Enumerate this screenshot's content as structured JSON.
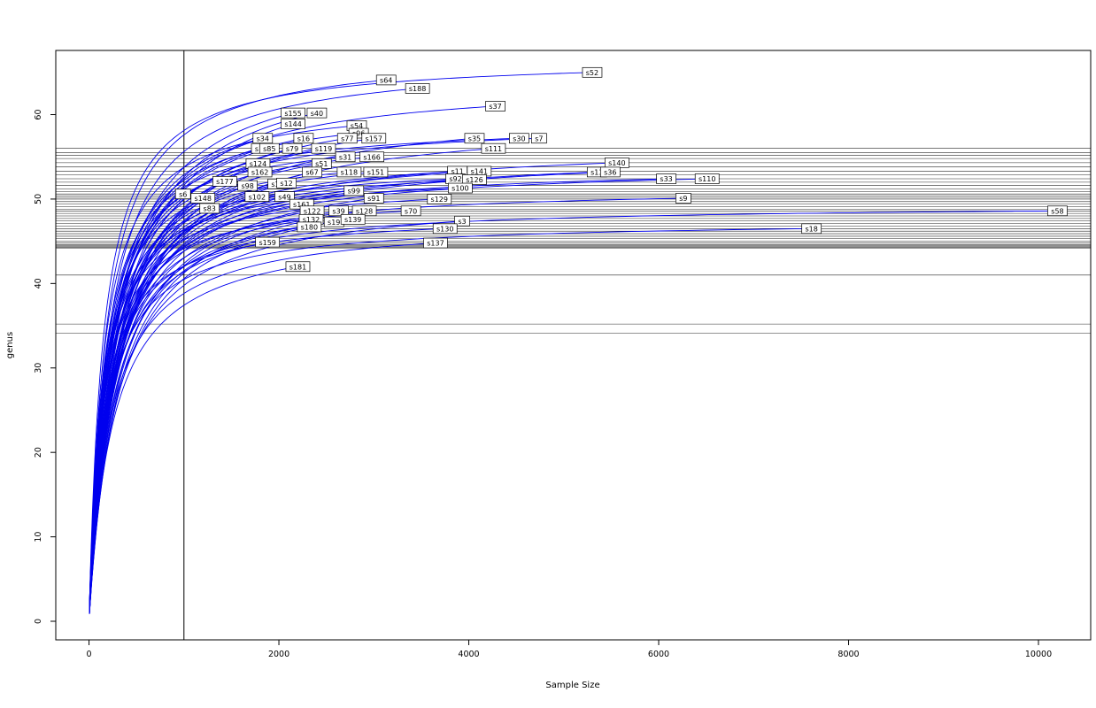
{
  "figure": {
    "background": "#ffffff"
  },
  "chart_data": {
    "type": "line",
    "title": "",
    "xlabel": "Sample Size",
    "ylabel": "genus",
    "curve_color": "#0000ee",
    "hline_color": "#000000",
    "box_color": "#000000",
    "xlim": [
      -350,
      10550
    ],
    "ylim": [
      -2.2,
      67.6
    ],
    "x_ticks": [
      0,
      2000,
      4000,
      6000,
      8000,
      10000
    ],
    "y_ticks": [
      0,
      10,
      20,
      30,
      40,
      50,
      60
    ],
    "vline_x": 1000,
    "hlines": [
      56.0,
      55.5,
      55.2,
      54.8,
      54.3,
      53.8,
      53.3,
      52.9,
      52.4,
      52.0,
      51.6,
      51.2,
      50.9,
      50.6,
      50.4,
      50.2,
      50.0,
      49.7,
      49.4,
      49.1,
      48.8,
      48.6,
      48.3,
      48.0,
      47.7,
      47.4,
      47.1,
      46.8,
      46.5,
      46.2,
      45.9,
      45.6,
      45.3,
      45.0,
      44.8,
      44.6,
      44.5,
      44.4,
      44.3,
      44.2,
      41.0,
      35.2,
      34.1
    ],
    "series": [
      {
        "label": "s52",
        "end_x": 5300,
        "end_y": 65.0
      },
      {
        "label": "s64",
        "end_x": 3130,
        "end_y": 64.1
      },
      {
        "label": "s188",
        "end_x": 3460,
        "end_y": 63.1
      },
      {
        "label": "s37",
        "end_x": 4280,
        "end_y": 61.0
      },
      {
        "label": "s155",
        "end_x": 2150,
        "end_y": 60.2
      },
      {
        "label": "s40",
        "end_x": 2400,
        "end_y": 60.2
      },
      {
        "label": "s144",
        "end_x": 2150,
        "end_y": 58.9
      },
      {
        "label": "s54",
        "end_x": 2820,
        "end_y": 58.7
      },
      {
        "label": "s96",
        "end_x": 2840,
        "end_y": 57.8
      },
      {
        "label": "s34",
        "end_x": 1830,
        "end_y": 57.2
      },
      {
        "label": "s16",
        "end_x": 2260,
        "end_y": 57.2
      },
      {
        "label": "s77",
        "end_x": 2720,
        "end_y": 57.2
      },
      {
        "label": "s157",
        "end_x": 3000,
        "end_y": 57.2
      },
      {
        "label": "s35",
        "end_x": 4060,
        "end_y": 57.2
      },
      {
        "label": "s30",
        "end_x": 4530,
        "end_y": 57.2
      },
      {
        "label": "s7",
        "end_x": 4740,
        "end_y": 57.2
      },
      {
        "label": "s1",
        "end_x": 1790,
        "end_y": 56.0
      },
      {
        "label": "s85",
        "end_x": 1900,
        "end_y": 56.0
      },
      {
        "label": "s79",
        "end_x": 2140,
        "end_y": 56.0
      },
      {
        "label": "s119",
        "end_x": 2470,
        "end_y": 56.0
      },
      {
        "label": "s111",
        "end_x": 4260,
        "end_y": 56.0
      },
      {
        "label": "s31",
        "end_x": 2700,
        "end_y": 55.0
      },
      {
        "label": "s166",
        "end_x": 2980,
        "end_y": 55.0
      },
      {
        "label": "s124",
        "end_x": 1780,
        "end_y": 54.2
      },
      {
        "label": "s51",
        "end_x": 2450,
        "end_y": 54.2
      },
      {
        "label": "s140",
        "end_x": 5560,
        "end_y": 54.3
      },
      {
        "label": "s162",
        "end_x": 1800,
        "end_y": 53.2
      },
      {
        "label": "s67",
        "end_x": 2350,
        "end_y": 53.2
      },
      {
        "label": "s118",
        "end_x": 2740,
        "end_y": 53.2
      },
      {
        "label": "s151",
        "end_x": 3020,
        "end_y": 53.2
      },
      {
        "label": "s11",
        "end_x": 3880,
        "end_y": 53.3
      },
      {
        "label": "s141",
        "end_x": 4110,
        "end_y": 53.3
      },
      {
        "label": "s13",
        "end_x": 5350,
        "end_y": 53.2
      },
      {
        "label": "s36",
        "end_x": 5490,
        "end_y": 53.2
      },
      {
        "label": "s177",
        "end_x": 1430,
        "end_y": 52.1
      },
      {
        "label": "s92",
        "end_x": 3860,
        "end_y": 52.4
      },
      {
        "label": "s126",
        "end_x": 4060,
        "end_y": 52.3
      },
      {
        "label": "s33",
        "end_x": 6080,
        "end_y": 52.4
      },
      {
        "label": "s110",
        "end_x": 6510,
        "end_y": 52.4
      },
      {
        "label": "s98",
        "end_x": 1670,
        "end_y": 51.6
      },
      {
        "label": "s156",
        "end_x": 2010,
        "end_y": 51.8
      },
      {
        "label": "s12",
        "end_x": 2080,
        "end_y": 51.9
      },
      {
        "label": "s100",
        "end_x": 3910,
        "end_y": 51.3
      },
      {
        "label": "s99",
        "end_x": 2790,
        "end_y": 51.0
      },
      {
        "label": "s6",
        "end_x": 990,
        "end_y": 50.6
      },
      {
        "label": "s148",
        "end_x": 1200,
        "end_y": 50.1
      },
      {
        "label": "s102",
        "end_x": 1770,
        "end_y": 50.3
      },
      {
        "label": "s49",
        "end_x": 2060,
        "end_y": 50.3
      },
      {
        "label": "s91",
        "end_x": 3000,
        "end_y": 50.1
      },
      {
        "label": "s129",
        "end_x": 3690,
        "end_y": 50.0
      },
      {
        "label": "s9",
        "end_x": 6260,
        "end_y": 50.1
      },
      {
        "label": "s83",
        "end_x": 1270,
        "end_y": 48.9
      },
      {
        "label": "s161",
        "end_x": 2240,
        "end_y": 49.4
      },
      {
        "label": "s122",
        "end_x": 2350,
        "end_y": 48.6
      },
      {
        "label": "s39",
        "end_x": 2630,
        "end_y": 48.6
      },
      {
        "label": "s128",
        "end_x": 2900,
        "end_y": 48.6
      },
      {
        "label": "s70",
        "end_x": 3390,
        "end_y": 48.6
      },
      {
        "label": "s58",
        "end_x": 10200,
        "end_y": 48.6
      },
      {
        "label": "s132",
        "end_x": 2340,
        "end_y": 47.6
      },
      {
        "label": "s19",
        "end_x": 2580,
        "end_y": 47.3
      },
      {
        "label": "s139",
        "end_x": 2780,
        "end_y": 47.6
      },
      {
        "label": "s3",
        "end_x": 3930,
        "end_y": 47.4
      },
      {
        "label": "s180",
        "end_x": 2320,
        "end_y": 46.7
      },
      {
        "label": "s130",
        "end_x": 3750,
        "end_y": 46.5
      },
      {
        "label": "s18",
        "end_x": 7610,
        "end_y": 46.5
      },
      {
        "label": "s159",
        "end_x": 1880,
        "end_y": 44.9
      },
      {
        "label": "s137",
        "end_x": 3650,
        "end_y": 44.8
      },
      {
        "label": "s181",
        "end_x": 2200,
        "end_y": 42.0
      }
    ]
  }
}
